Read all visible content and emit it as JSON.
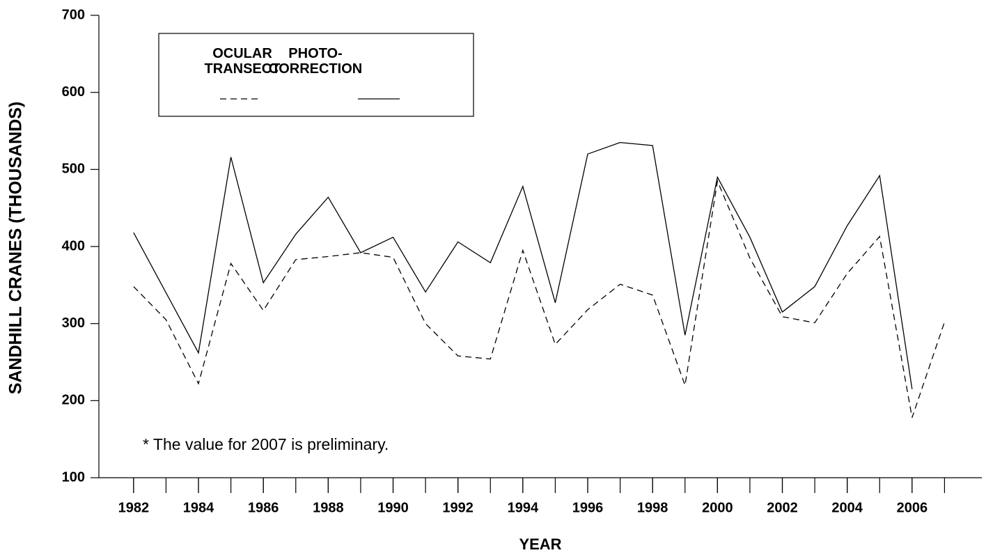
{
  "chart_data": {
    "type": "line",
    "x_label": "YEAR",
    "y_label": "SANDHILL CRANES (THOUSANDS)",
    "annotation": "* The value for 2007 is preliminary.",
    "x": [
      1982,
      1983,
      1984,
      1985,
      1986,
      1987,
      1988,
      1989,
      1990,
      1991,
      1992,
      1993,
      1994,
      1995,
      1996,
      1997,
      1998,
      1999,
      2000,
      2001,
      2002,
      2003,
      2004,
      2005,
      2006,
      2007
    ],
    "series": [
      {
        "name": "OCULAR TRANSECT",
        "color": "#000000",
        "dash": true,
        "values": [
          348,
          305,
          222,
          378,
          317,
          383,
          387,
          392,
          386,
          300,
          258,
          254,
          395,
          273,
          318,
          351,
          337,
          220,
          485,
          385,
          309,
          301,
          365,
          413,
          178,
          302
        ]
      },
      {
        "name": "PHOTO-CORRECTION",
        "color": "#000000",
        "dash": false,
        "values": [
          418,
          340,
          262,
          516,
          353,
          416,
          464,
          392,
          412,
          341,
          406,
          379,
          478,
          327,
          520,
          535,
          531,
          285,
          490,
          412,
          315,
          348,
          427,
          492,
          215,
          null
        ]
      }
    ],
    "xlim": [
      1980.93,
      2008.15
    ],
    "xticks": [
      1982,
      1984,
      1986,
      1988,
      1990,
      1992,
      1994,
      1996,
      1998,
      2000,
      2002,
      2004,
      2006
    ],
    "ylim": [
      100,
      700
    ],
    "yticks": [
      100,
      200,
      300,
      400,
      500,
      600,
      700
    ]
  }
}
